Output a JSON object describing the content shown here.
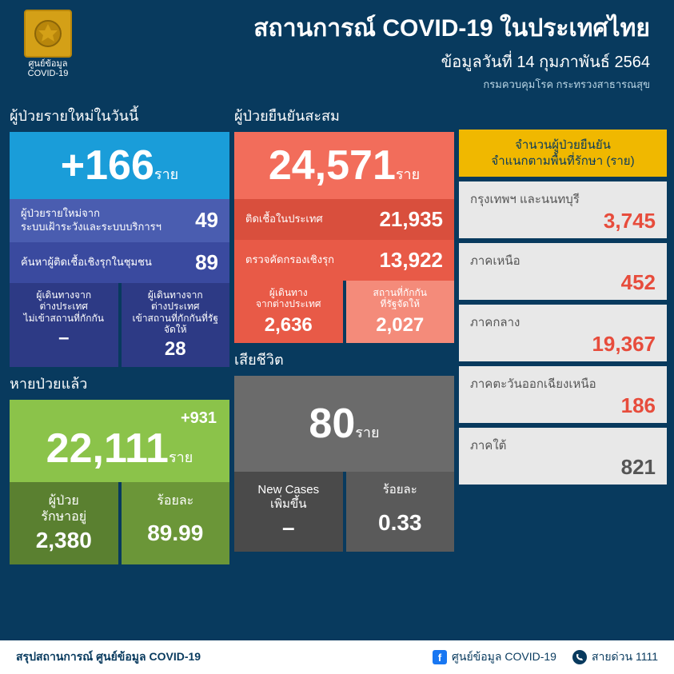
{
  "header": {
    "logo_label1": "ศูนย์ข้อมูล",
    "logo_label2": "COVID-19",
    "title": "สถานการณ์ COVID-19 ในประเทศไทย",
    "subtitle": "ข้อมูลวันที่ 14 กุมภาพันธ์ 2564",
    "dept": "กรมควบคุมโรค กระทรวงสาธารณสุข"
  },
  "new_cases": {
    "title": "ผู้ป่วยรายใหม่ในวันนี้",
    "value": "+166",
    "unit": "ราย",
    "bg": "#1a9dd9",
    "row1": {
      "label": "ผู้ป่วยรายใหม่จาก\nระบบเฝ้าระวังและระบบบริการฯ",
      "value": "49",
      "bg": "#4a5db0"
    },
    "row2": {
      "label": "ค้นหาผู้ติดเชื้อเชิงรุกในชุมชน",
      "value": "89",
      "bg": "#3a4a9f"
    },
    "split": {
      "left": {
        "label": "ผู้เดินทางจาก\nต่างประเทศ\nไม่เข้าสถานที่กักกัน",
        "value": "–",
        "bg": "#2d3a85"
      },
      "right": {
        "label": "ผู้เดินทางจาก\nต่างประเทศ\nเข้าสถานที่กักกันที่รัฐจัดให้",
        "value": "28",
        "bg": "#2d3a85"
      }
    }
  },
  "confirmed": {
    "title": "ผู้ป่วยยืนยันสะสม",
    "value": "24,571",
    "unit": "ราย",
    "bg": "#f26d5b",
    "row1": {
      "label": "ติดเชื้อในประเทศ",
      "value": "21,935",
      "bg": "#d94f3d"
    },
    "row2": {
      "label": "ตรวจคัดกรองเชิงรุก",
      "value": "13,922",
      "bg": "#e85a47"
    },
    "split": {
      "left": {
        "label": "ผู้เดินทาง\nจากต่างประเทศ",
        "value": "2,636",
        "bg": "#e85a47"
      },
      "right": {
        "label": "สถานที่กักกัน\nที่รัฐจัดให้",
        "value": "2,027",
        "bg": "#f48b7a"
      }
    }
  },
  "recovered": {
    "title": "หายป่วยแล้ว",
    "delta": "+931",
    "value": "22,111",
    "unit": "ราย",
    "bg": "#8bc34a",
    "split": {
      "left": {
        "label": "ผู้ป่วย\nรักษาอยู่",
        "value": "2,380",
        "bg": "#5a8030"
      },
      "right": {
        "label": "ร้อยละ",
        "value": "89.99",
        "bg": "#6b9638"
      }
    }
  },
  "deaths": {
    "title": "เสียชีวิต",
    "value": "80",
    "unit": "ราย",
    "bg": "#6b6b6b",
    "split": {
      "left": {
        "label": "New Cases\nเพิ่มขึ้น",
        "value": "–",
        "bg": "#4a4a4a"
      },
      "right": {
        "label": "ร้อยละ",
        "value": "0.33",
        "bg": "#5a5a5a"
      }
    }
  },
  "regions": {
    "header": "จำนวนผู้ป่วยยืนยัน\nจำแนกตามพื้นที่รักษา (ราย)",
    "items": [
      {
        "name": "กรุงเทพฯ และนนทบุรี",
        "value": "3,745",
        "color": "#e74c3c"
      },
      {
        "name": "ภาคเหนือ",
        "value": "452",
        "color": "#e74c3c"
      },
      {
        "name": "ภาคกลาง",
        "value": "19,367",
        "color": "#e74c3c"
      },
      {
        "name": "ภาคตะวันออกเฉียงเหนือ",
        "value": "186",
        "color": "#e74c3c"
      },
      {
        "name": "ภาคใต้",
        "value": "821",
        "color": "#555555"
      }
    ]
  },
  "footer": {
    "left": "สรุปสถานการณ์ ศูนย์ข้อมูล COVID-19",
    "fb": "ศูนย์ข้อมูล COVID-19",
    "phone": "สายด่วน 1111"
  }
}
